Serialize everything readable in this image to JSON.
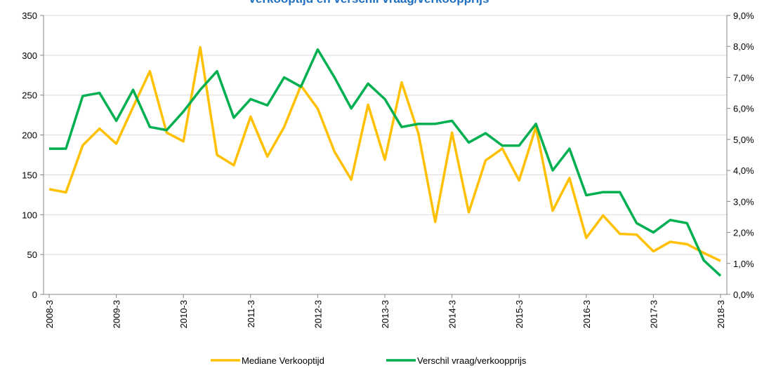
{
  "chart_data": {
    "type": "line",
    "title": "Verkooptijd en verschil vraag/verkoopprijs",
    "categories": [
      "2008-3",
      null,
      null,
      null,
      "2009-3",
      null,
      null,
      null,
      "2010-3",
      null,
      null,
      null,
      "2011-3",
      null,
      null,
      null,
      "2012-3",
      null,
      null,
      null,
      "2013-3",
      null,
      null,
      null,
      "2014-3",
      null,
      null,
      null,
      "2015-3",
      null,
      null,
      null,
      "2016-3",
      null,
      null,
      null,
      "2017-3",
      null,
      null,
      null,
      "2018-3"
    ],
    "series": [
      {
        "name": "Mediane Verkooptijd",
        "color": "#ffc000",
        "values": [
          132,
          128,
          187,
          208,
          189,
          235,
          280,
          203,
          192,
          310,
          175,
          162,
          223,
          173,
          210,
          262,
          233,
          179,
          144,
          238,
          169,
          266,
          202,
          91,
          203,
          103,
          168,
          183,
          143,
          210,
          105,
          146,
          71,
          99,
          76,
          75,
          54,
          66,
          63,
          52,
          42
        ]
      },
      {
        "name": "Verschil vraag/verkoopprijs",
        "color": "#00b050",
        "axis": "y2",
        "values": [
          4.7,
          4.7,
          6.4,
          6.5,
          5.6,
          6.6,
          5.4,
          5.3,
          5.9,
          6.6,
          7.2,
          5.7,
          6.3,
          6.1,
          7.0,
          6.7,
          7.9,
          7.0,
          6.0,
          6.8,
          6.3,
          5.4,
          5.5,
          5.5,
          5.6,
          4.9,
          5.2,
          4.8,
          4.8,
          5.5,
          4.0,
          4.7,
          3.2,
          3.3,
          3.3,
          2.3,
          2.0,
          2.4,
          2.3,
          1.1,
          0.6
        ]
      }
    ],
    "ylim": [
      0,
      350
    ],
    "yticks": [
      0,
      50,
      100,
      150,
      200,
      250,
      300,
      350
    ],
    "y2lim": [
      0,
      9
    ],
    "y2ticks": [
      {
        "value": 0,
        "label": "0,0%"
      },
      {
        "value": 1,
        "label": "1,0%"
      },
      {
        "value": 2,
        "label": "2,0%"
      },
      {
        "value": 3,
        "label": "3,0%"
      },
      {
        "value": 4,
        "label": "4,0%"
      },
      {
        "value": 5,
        "label": "5,0%"
      },
      {
        "value": 6,
        "label": "6,0%"
      },
      {
        "value": 7,
        "label": "7,0%"
      },
      {
        "value": 8,
        "label": "8,0%"
      },
      {
        "value": 9,
        "label": "9,0%"
      }
    ],
    "grid": true,
    "legend": "bottom"
  }
}
